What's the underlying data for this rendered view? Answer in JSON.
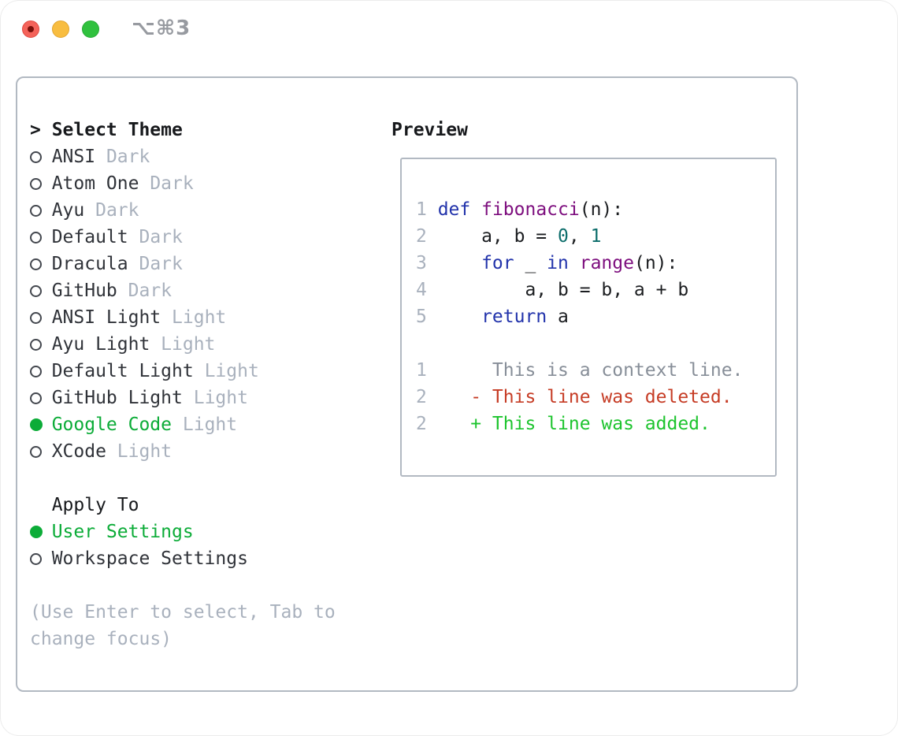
{
  "window": {
    "title": "⌥⌘3"
  },
  "theme_panel": {
    "cursor": ">",
    "title": "Select Theme",
    "items": [
      {
        "name": "ANSI",
        "variant": "Dark",
        "selected": false
      },
      {
        "name": "Atom One",
        "variant": "Dark",
        "selected": false
      },
      {
        "name": "Ayu",
        "variant": "Dark",
        "selected": false
      },
      {
        "name": "Default",
        "variant": "Dark",
        "selected": false
      },
      {
        "name": "Dracula",
        "variant": "Dark",
        "selected": false
      },
      {
        "name": "GitHub",
        "variant": "Dark",
        "selected": false
      },
      {
        "name": "ANSI Light",
        "variant": "Light",
        "selected": false
      },
      {
        "name": "Ayu Light",
        "variant": "Light",
        "selected": false
      },
      {
        "name": "Default Light",
        "variant": "Light",
        "selected": false
      },
      {
        "name": "GitHub Light",
        "variant": "Light",
        "selected": false
      },
      {
        "name": "Google Code",
        "variant": "Light",
        "selected": true
      },
      {
        "name": "XCode",
        "variant": "Light",
        "selected": false
      }
    ],
    "apply_to": {
      "label": "Apply To",
      "options": [
        {
          "name": "User Settings",
          "selected": true
        },
        {
          "name": "Workspace Settings",
          "selected": false
        }
      ]
    },
    "hint": "(Use Enter to select, Tab to change focus)"
  },
  "preview_panel": {
    "title": "Preview",
    "code_lines": [
      {
        "num": "1",
        "tokens": [
          {
            "t": "def",
            "c": "kw"
          },
          {
            "t": " ",
            "c": ""
          },
          {
            "t": "fibonacci",
            "c": "fn"
          },
          {
            "t": "(n):",
            "c": ""
          }
        ]
      },
      {
        "num": "2",
        "tokens": [
          {
            "t": "    a, b = ",
            "c": ""
          },
          {
            "t": "0",
            "c": "num"
          },
          {
            "t": ", ",
            "c": ""
          },
          {
            "t": "1",
            "c": "num"
          }
        ]
      },
      {
        "num": "3",
        "tokens": [
          {
            "t": "    ",
            "c": ""
          },
          {
            "t": "for",
            "c": "kw"
          },
          {
            "t": " _ ",
            "c": ""
          },
          {
            "t": "in",
            "c": "kw"
          },
          {
            "t": " ",
            "c": ""
          },
          {
            "t": "range",
            "c": "fn"
          },
          {
            "t": "(n):",
            "c": ""
          }
        ]
      },
      {
        "num": "4",
        "tokens": [
          {
            "t": "        a, b = b, a + b",
            "c": ""
          }
        ]
      },
      {
        "num": "5",
        "tokens": [
          {
            "t": "    ",
            "c": ""
          },
          {
            "t": "return",
            "c": "kw"
          },
          {
            "t": " a",
            "c": ""
          }
        ]
      }
    ],
    "diff_lines": [
      {
        "num": "1",
        "marker": " ",
        "text": "This is a context line.",
        "type": "context"
      },
      {
        "num": "2",
        "marker": "-",
        "text": "This line was deleted.",
        "type": "deleted"
      },
      {
        "num": "2",
        "marker": "+",
        "text": "This line was added.",
        "type": "added"
      }
    ]
  },
  "colors": {
    "selection_green": "#0cac38",
    "diff_added_green": "#1dc42e",
    "diff_deleted_red": "#c63c25",
    "keyword_blue": "#2233ab",
    "function_purple": "#7d0e7e",
    "number_teal": "#0c6d6b",
    "muted_gray": "#a9b1bd",
    "context_gray": "#878e98",
    "border_gray": "#b2b9c2",
    "traffic_red": "#f4635a",
    "traffic_yellow": "#f8bd40",
    "traffic_green": "#30c13e"
  }
}
